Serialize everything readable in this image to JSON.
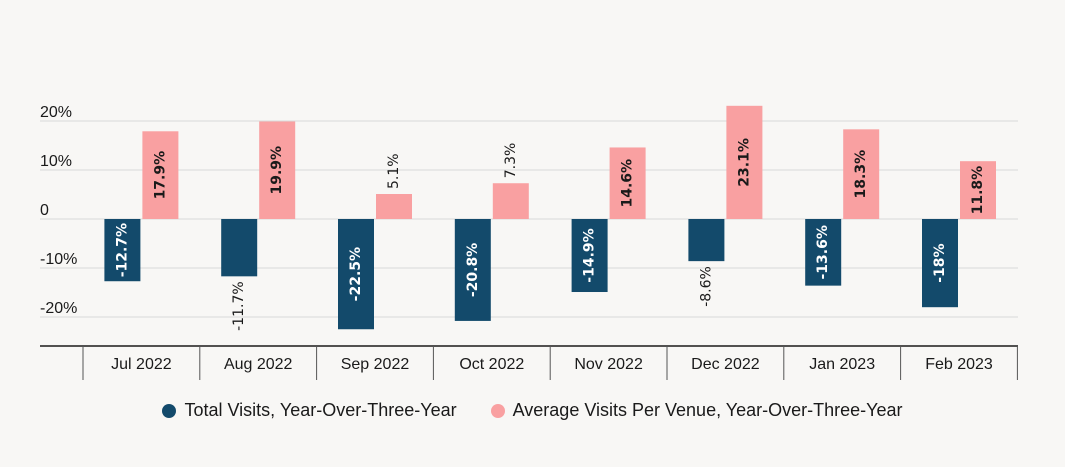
{
  "chart_data": {
    "type": "bar",
    "categories": [
      "Jul 2022",
      "Aug 2022",
      "Sep 2022",
      "Oct 2022",
      "Nov 2022",
      "Dec 2022",
      "Jan 2023",
      "Feb 2023"
    ],
    "series": [
      {
        "name": "Total Visits, Year-Over-Three-Year",
        "values": [
          -12.7,
          -11.7,
          -22.5,
          -20.8,
          -14.9,
          -8.6,
          -13.6,
          -18
        ],
        "labels": [
          "-12.7%",
          "-11.7%",
          "-22.5%",
          "-20.8%",
          "-14.9%",
          "-8.6%",
          "-13.6%",
          "-18%"
        ],
        "color": "#134a6b"
      },
      {
        "name": "Average Visits Per Venue, Year-Over-Three-Year",
        "values": [
          17.9,
          19.9,
          5.1,
          7.3,
          14.6,
          23.1,
          18.3,
          11.8
        ],
        "labels": [
          "17.9%",
          "19.9%",
          "5.1%",
          "7.3%",
          "14.6%",
          "23.1%",
          "18.3%",
          "11.8%"
        ],
        "color": "#f9a0a1"
      }
    ],
    "yticks": [
      {
        "value": 20,
        "label": "20%"
      },
      {
        "value": 10,
        "label": "10%"
      },
      {
        "value": 0,
        "label": "0"
      },
      {
        "value": -10,
        "label": "-10%"
      },
      {
        "value": -20,
        "label": "-20%"
      }
    ],
    "ylim": [
      -25,
      23.5
    ],
    "grid": true,
    "legend_position": "bottom"
  }
}
